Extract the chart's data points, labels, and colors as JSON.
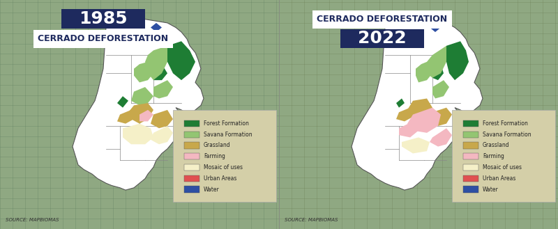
{
  "background_color": "#8fa882",
  "panel_bg_left": "#7a9e7e",
  "panel_bg_right": "#8c9e72",
  "grid_color": "#6b8f6e",
  "title_left_year": "1985",
  "title_left_sub": "CERRADO DEFORESTATION",
  "title_right_year": "2022",
  "title_right_sub": "CERRADO DEFORESTATION",
  "title_bg_color": "#1e2a5e",
  "title_text_color": "#ffffff",
  "subtitle_bg_color": "#ffffff",
  "subtitle_text_color": "#1e2a5e",
  "source_text": "SOURCE: MAPBIOMAS",
  "legend_items": [
    {
      "label": "Forest Formation",
      "color": "#1e7d34"
    },
    {
      "label": "Savana Formation",
      "color": "#93c572"
    },
    {
      "label": "Grassland",
      "color": "#c8a84b"
    },
    {
      "label": "Farming",
      "color": "#f4b8c1"
    },
    {
      "label": "Mosaic of uses",
      "color": "#f5f0c8"
    },
    {
      "label": "Urban Areas",
      "color": "#e05050"
    },
    {
      "label": "Water",
      "color": "#2e4fa3"
    }
  ],
  "legend_bg_color": "#d4cfa8",
  "brazil_outline_color": "#555555",
  "brazil_fill_color": "#ffffff",
  "cerrado_colors_1985": {
    "forest": "#1e7d34",
    "savana": "#93c572",
    "grassland": "#c8a84b",
    "farming": "#f4b8c1",
    "mosaic": "#f5f0c8",
    "urban": "#e05050",
    "water": "#2e4fa3"
  },
  "cerrado_colors_2022": {
    "forest": "#1e7d34",
    "savana": "#93c572",
    "grassland": "#c8a84b",
    "farming": "#f4b8c1",
    "mosaic": "#f5f0c8",
    "urban": "#e05050",
    "water": "#2e4fa3"
  }
}
